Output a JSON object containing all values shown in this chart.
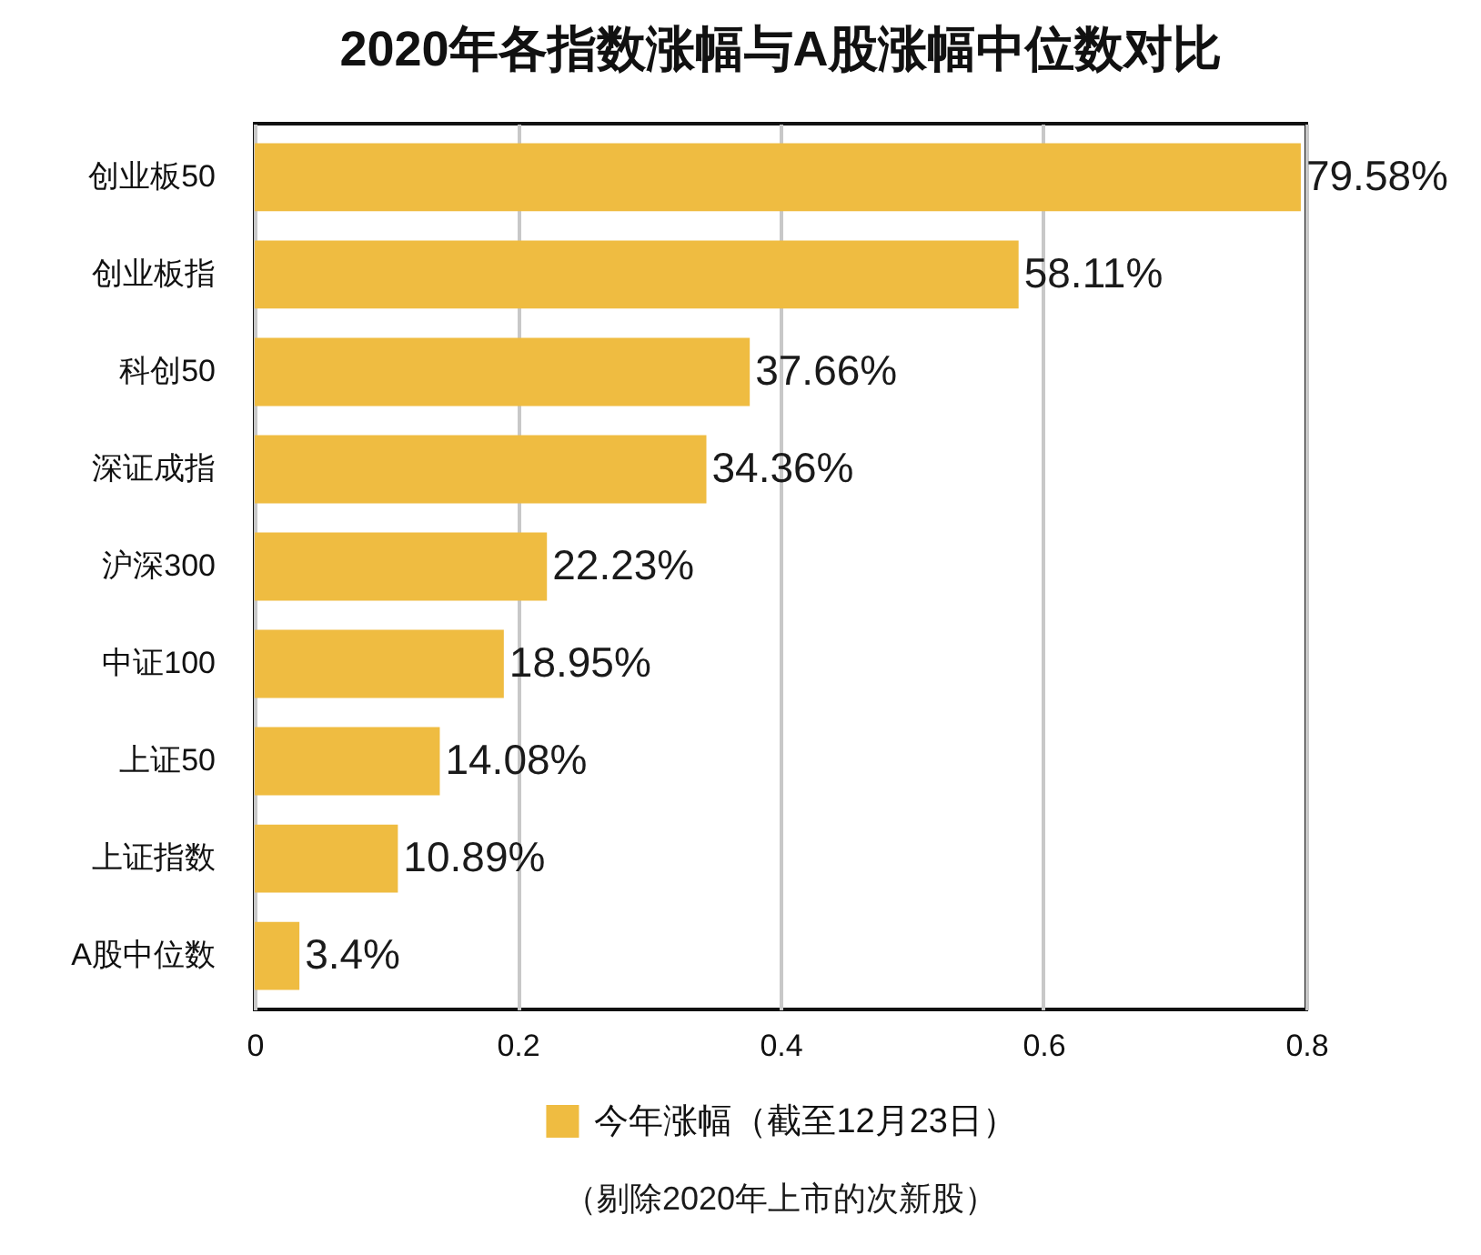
{
  "chart_data": {
    "type": "bar",
    "orientation": "horizontal",
    "title": "2020年各指数涨幅与A股涨幅中位数对比",
    "categories": [
      "创业板50",
      "创业板指",
      "科创50",
      "深证成指",
      "沪深300",
      "中证100",
      "上证50",
      "上证指数",
      "A股中位数"
    ],
    "series": [
      {
        "name": "今年涨幅（截至12月23日）",
        "color": "#efbc41",
        "values": [
          0.7958,
          0.5811,
          0.3766,
          0.3436,
          0.2223,
          0.1895,
          0.1408,
          0.1089,
          0.034
        ],
        "value_labels": [
          "79.58%",
          "58.11%",
          "37.66%",
          "34.36%",
          "22.23%",
          "18.95%",
          "14.08%",
          "10.89%",
          "3.4%"
        ]
      }
    ],
    "xlim": [
      0,
      0.8
    ],
    "xticks": [
      0,
      0.2,
      0.4,
      0.6,
      0.8
    ],
    "grid": "x",
    "legend": "bottom",
    "annotations": [
      "（剔除2020年上市的次新股）"
    ]
  }
}
